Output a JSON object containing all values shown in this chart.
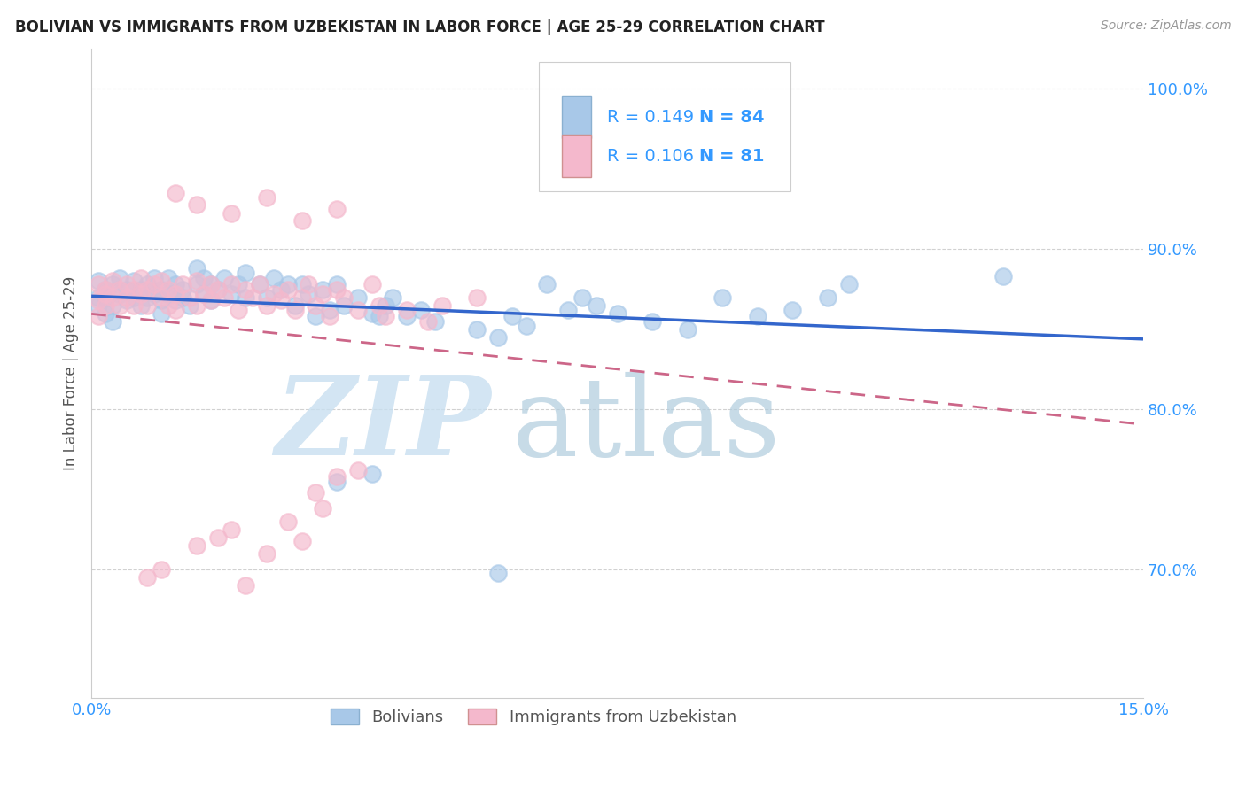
{
  "title": "BOLIVIAN VS IMMIGRANTS FROM UZBEKISTAN IN LABOR FORCE | AGE 25-29 CORRELATION CHART",
  "source": "Source: ZipAtlas.com",
  "ylabel": "In Labor Force | Age 25-29",
  "xlim": [
    0.0,
    0.15
  ],
  "ylim": [
    0.62,
    1.025
  ],
  "yticks": [
    0.7,
    0.8,
    0.9,
    1.0
  ],
  "ytick_labels": [
    "70.0%",
    "80.0%",
    "90.0%",
    "100.0%"
  ],
  "xticks": [
    0.0,
    0.05,
    0.1,
    0.15
  ],
  "xtick_labels": [
    "0.0%",
    "",
    "",
    "15.0%"
  ],
  "blue_color": "#a8c8e8",
  "pink_color": "#f4b8cc",
  "blue_line_color": "#3366cc",
  "pink_line_color": "#cc6688",
  "axis_label_color": "#3399ff",
  "watermark_zip_color": "#c8dff0",
  "watermark_atlas_color": "#b0ccdd"
}
